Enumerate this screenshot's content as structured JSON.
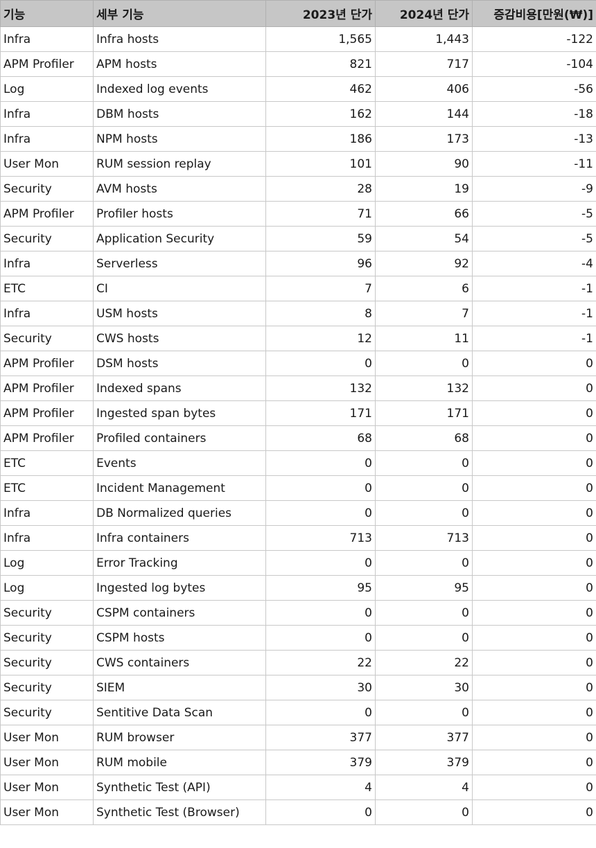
{
  "headers": [
    "기능",
    "세부 기능",
    "2023년 단가",
    "2024년 단가",
    "증감비용[만원(₩)]"
  ],
  "rows": [
    [
      "Infra",
      "Infra hosts",
      "1,565",
      "1,443",
      "-122"
    ],
    [
      "APM Profiler",
      "APM hosts",
      "821",
      "717",
      "-104"
    ],
    [
      "Log",
      "Indexed log events",
      "462",
      "406",
      "-56"
    ],
    [
      "Infra",
      "DBM hosts",
      "162",
      "144",
      "-18"
    ],
    [
      "Infra",
      "NPM hosts",
      "186",
      "173",
      "-13"
    ],
    [
      "User Mon",
      "RUM session replay",
      "101",
      "90",
      "-11"
    ],
    [
      "Security",
      "AVM hosts",
      "28",
      "19",
      "-9"
    ],
    [
      "APM Profiler",
      "Profiler hosts",
      "71",
      "66",
      "-5"
    ],
    [
      "Security",
      "Application Security",
      "59",
      "54",
      "-5"
    ],
    [
      "Infra",
      "Serverless",
      "96",
      "92",
      "-4"
    ],
    [
      "ETC",
      "CI",
      "7",
      "6",
      "-1"
    ],
    [
      "Infra",
      "USM hosts",
      "8",
      "7",
      "-1"
    ],
    [
      "Security",
      "CWS hosts",
      "12",
      "11",
      "-1"
    ],
    [
      "APM Profiler",
      "DSM hosts",
      "0",
      "0",
      "0"
    ],
    [
      "APM Profiler",
      "Indexed spans",
      "132",
      "132",
      "0"
    ],
    [
      "APM Profiler",
      "Ingested span bytes",
      "171",
      "171",
      "0"
    ],
    [
      "APM Profiler",
      "Profiled containers",
      "68",
      "68",
      "0"
    ],
    [
      "ETC",
      "Events",
      "0",
      "0",
      "0"
    ],
    [
      "ETC",
      "Incident Management",
      "0",
      "0",
      "0"
    ],
    [
      "Infra",
      "DB Normalized queries",
      "0",
      "0",
      "0"
    ],
    [
      "Infra",
      "Infra containers",
      "713",
      "713",
      "0"
    ],
    [
      "Log",
      "Error Tracking",
      "0",
      "0",
      "0"
    ],
    [
      "Log",
      "Ingested log bytes",
      "95",
      "95",
      "0"
    ],
    [
      "Security",
      "CSPM containers",
      "0",
      "0",
      "0"
    ],
    [
      "Security",
      "CSPM hosts",
      "0",
      "0",
      "0"
    ],
    [
      "Security",
      "CWS containers",
      "22",
      "22",
      "0"
    ],
    [
      "Security",
      "SIEM",
      "30",
      "30",
      "0"
    ],
    [
      "Security",
      "Sentitive Data Scan",
      "0",
      "0",
      "0"
    ],
    [
      "User Mon",
      "RUM browser",
      "377",
      "377",
      "0"
    ],
    [
      "User Mon",
      "RUM mobile",
      "379",
      "379",
      "0"
    ],
    [
      "User Mon",
      "Synthetic Test (API)",
      "4",
      "4",
      "0"
    ],
    [
      "User Mon",
      "Synthetic Test (Browser)",
      "0",
      "0",
      "0"
    ]
  ]
}
